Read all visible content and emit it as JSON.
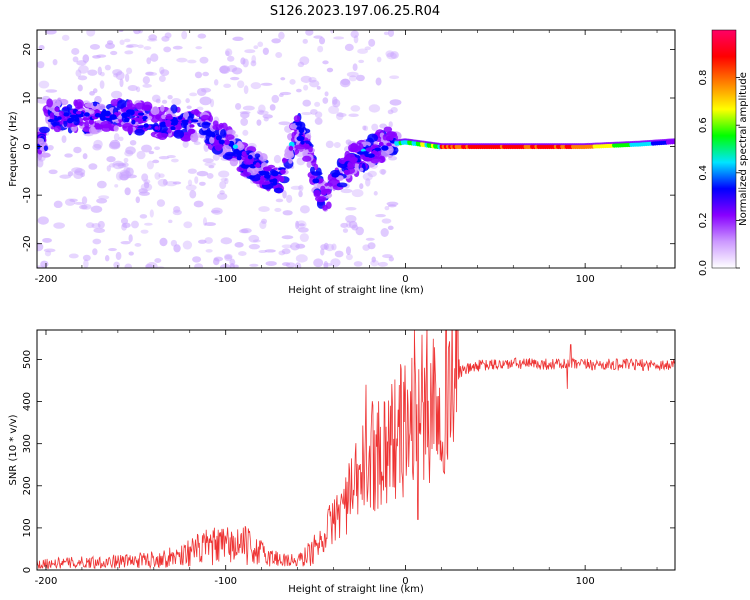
{
  "title": "S126.2023.197.06.25.R04",
  "spectrogram": {
    "type": "heatmap",
    "xlabel": "Height of straight line (km)",
    "ylabel": "Frequency (Hz)",
    "xlim": [
      -205,
      150
    ],
    "ylim": [
      -25,
      24
    ],
    "xticks": [
      -200,
      -100,
      0,
      100
    ],
    "yticks": [
      -20,
      -10,
      0,
      10,
      20
    ],
    "ridge": [
      {
        "x": -200,
        "y": 6.5
      },
      {
        "x": -190,
        "y": 6.5
      },
      {
        "x": -180,
        "y": 6
      },
      {
        "x": -170,
        "y": 6
      },
      {
        "x": -160,
        "y": 6.5
      },
      {
        "x": -150,
        "y": 6
      },
      {
        "x": -140,
        "y": 5
      },
      {
        "x": -130,
        "y": 5
      },
      {
        "x": -120,
        "y": 4.5
      },
      {
        "x": -110,
        "y": 3.5
      },
      {
        "x": -100,
        "y": 1
      },
      {
        "x": -90,
        "y": -2.5
      },
      {
        "x": -80,
        "y": -5
      },
      {
        "x": -70,
        "y": -7
      },
      {
        "x": -60,
        "y": 4
      },
      {
        "x": -55,
        "y": 0
      },
      {
        "x": -50,
        "y": -6
      },
      {
        "x": -45,
        "y": -11
      },
      {
        "x": -37,
        "y": -5.5
      },
      {
        "x": -30,
        "y": -3.5
      },
      {
        "x": -20,
        "y": -1
      },
      {
        "x": -10,
        "y": 0.5
      },
      {
        "x": 0,
        "y": 1
      },
      {
        "x": 10,
        "y": 0.5
      },
      {
        "x": 20,
        "y": 0
      },
      {
        "x": 50,
        "y": 0
      },
      {
        "x": 100,
        "y": 0
      },
      {
        "x": 130,
        "y": 0.5
      },
      {
        "x": 150,
        "y": 1
      }
    ]
  },
  "colorbar": {
    "label": "Normalized spectral amplitude",
    "ticks": [
      "0.0",
      "0.2",
      "0.4",
      "0.6",
      "0.8"
    ],
    "range": [
      0,
      1
    ],
    "colormap": [
      "#ffffff",
      "#cc99ff",
      "#8800ff",
      "#0000ff",
      "#00e5ff",
      "#00ff00",
      "#ffff00",
      "#ff8000",
      "#ff0000",
      "#ff0066"
    ]
  },
  "snr": {
    "type": "line",
    "xlabel": "Height of straight line (km)",
    "ylabel": "SNR (10 * v/v)",
    "xlim": [
      -205,
      150
    ],
    "ylim": [
      0,
      570
    ],
    "xticks": [
      -200,
      -100,
      0,
      100
    ],
    "yticks": [
      0,
      100,
      200,
      300,
      400,
      500
    ],
    "line_color": "#ee3333",
    "envelope": [
      {
        "x": -205,
        "y": 15
      },
      {
        "x": -180,
        "y": 18
      },
      {
        "x": -150,
        "y": 22
      },
      {
        "x": -130,
        "y": 30
      },
      {
        "x": -110,
        "y": 55
      },
      {
        "x": -90,
        "y": 60
      },
      {
        "x": -75,
        "y": 30
      },
      {
        "x": -60,
        "y": 20
      },
      {
        "x": -50,
        "y": 50
      },
      {
        "x": -40,
        "y": 120
      },
      {
        "x": -30,
        "y": 180
      },
      {
        "x": -20,
        "y": 270
      },
      {
        "x": -10,
        "y": 300
      },
      {
        "x": 0,
        "y": 340
      },
      {
        "x": 10,
        "y": 380
      },
      {
        "x": 20,
        "y": 440
      },
      {
        "x": 30,
        "y": 470
      },
      {
        "x": 40,
        "y": 485
      },
      {
        "x": 60,
        "y": 490
      },
      {
        "x": 100,
        "y": 488
      },
      {
        "x": 150,
        "y": 487
      }
    ],
    "spikes": [
      {
        "x": 5,
        "y": 570
      },
      {
        "x": -22,
        "y": 440
      },
      {
        "x": 7,
        "y": 120
      },
      {
        "x": 92,
        "y": 535
      },
      {
        "x": 90,
        "y": 430
      }
    ]
  }
}
